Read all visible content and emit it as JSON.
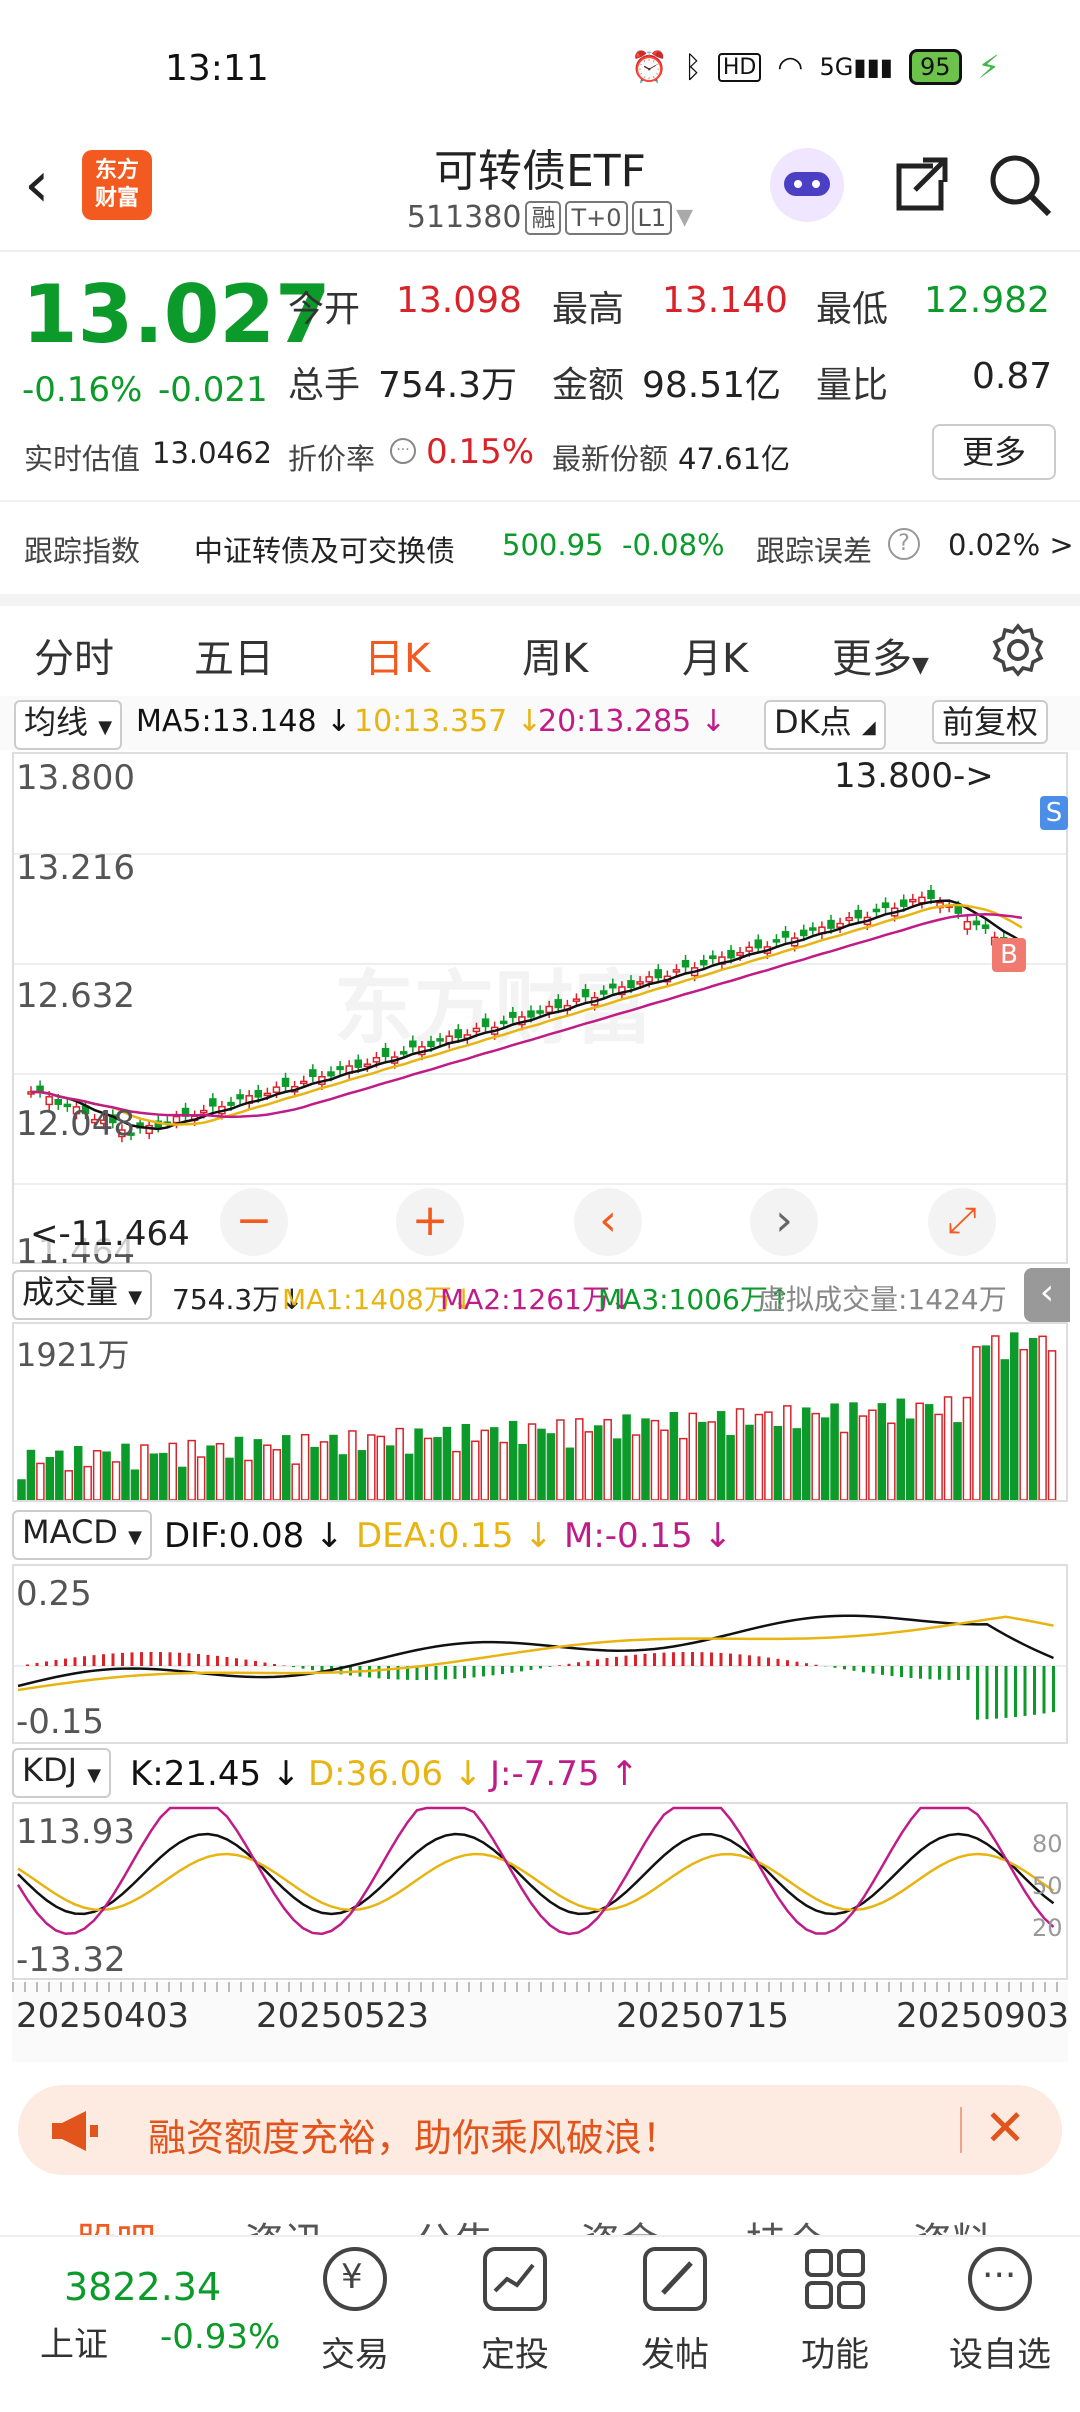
{
  "status_bar": {
    "time": "13:11",
    "battery": "95",
    "network": "5G"
  },
  "header": {
    "title": "可转债ETF",
    "code": "511380",
    "tags": [
      "融",
      "T+0",
      "L1"
    ],
    "logo_text": [
      "东方",
      "财富"
    ]
  },
  "quote": {
    "price": "13.027",
    "change_pct": "-0.16%",
    "change_abs": "-0.021",
    "open_label": "今开",
    "open": "13.098",
    "high_label": "最高",
    "high": "13.140",
    "low_label": "最低",
    "low": "12.982",
    "volume_label": "总手",
    "volume": "754.3万",
    "amount_label": "金额",
    "amount": "98.51亿",
    "ratio_label": "量比",
    "ratio": "0.87",
    "iopv_label": "实时估值",
    "iopv": "13.0462",
    "discount_label": "折价率",
    "discount": "0.15%",
    "shares_label": "最新份额",
    "shares": "47.61亿",
    "more_label": "更多"
  },
  "tracking": {
    "index_label": "跟踪指数",
    "index_name": "中证转债及可交换债",
    "index_value": "500.95",
    "index_change": "-0.08%",
    "error_label": "跟踪误差",
    "error_value": "0.02% >"
  },
  "tabs": [
    "分时",
    "五日",
    "日K",
    "周K",
    "月K",
    "更多"
  ],
  "active_tab": "日K",
  "ma_bar": {
    "mode": "均线",
    "ma5": "MA5:13.148",
    "ma10": "10:13.357",
    "ma20": "20:13.285",
    "dk": "DK点",
    "adjust": "前复权"
  },
  "kline": {
    "y_labels": [
      "13.800",
      "13.216",
      "12.632",
      "12.048",
      "11.464"
    ],
    "max_marker": "13.800->",
    "min_marker": "<-11.464",
    "watermark": "东方财富",
    "marker_s": "S",
    "marker_b": "B",
    "colors": {
      "up": "#d8232a",
      "down": "#0c9a2a",
      "ma5": "#111111",
      "ma10": "#e8b412",
      "ma20": "#c01c88"
    }
  },
  "volume": {
    "label": "成交量",
    "value": "754.3万",
    "ma1": "MA1:1408万",
    "ma2": "MA2:1261万",
    "ma3": "MA3:1006万",
    "virtual": "虚拟成交量:1424万",
    "y_max": "1921万"
  },
  "macd": {
    "label": "MACD",
    "dif": "DIF:0.08",
    "dea": "DEA:0.15",
    "m": "M:-0.15",
    "y_top": "0.25",
    "y_bottom": "-0.15"
  },
  "kdj": {
    "label": "KDJ",
    "k": "K:21.45",
    "d": "D:36.06",
    "j": "J:-7.75",
    "y_top": "113.93",
    "y_bottom": "-13.32",
    "right_ticks": [
      "80",
      "50",
      "20"
    ]
  },
  "dates": [
    "20250403",
    "20250523",
    "20250715",
    "20250903"
  ],
  "banner": {
    "text": "融资额度充裕，助你乘风破浪！"
  },
  "partial_tabs": [
    "股吧",
    "资讯",
    "公告",
    "资金",
    "持仓",
    "资料"
  ],
  "bottom_nav": {
    "index_value": "3822.34",
    "index_name": "上证",
    "index_change": "-0.93%",
    "items": [
      "交易",
      "定投",
      "发帖",
      "功能",
      "设自选"
    ]
  }
}
